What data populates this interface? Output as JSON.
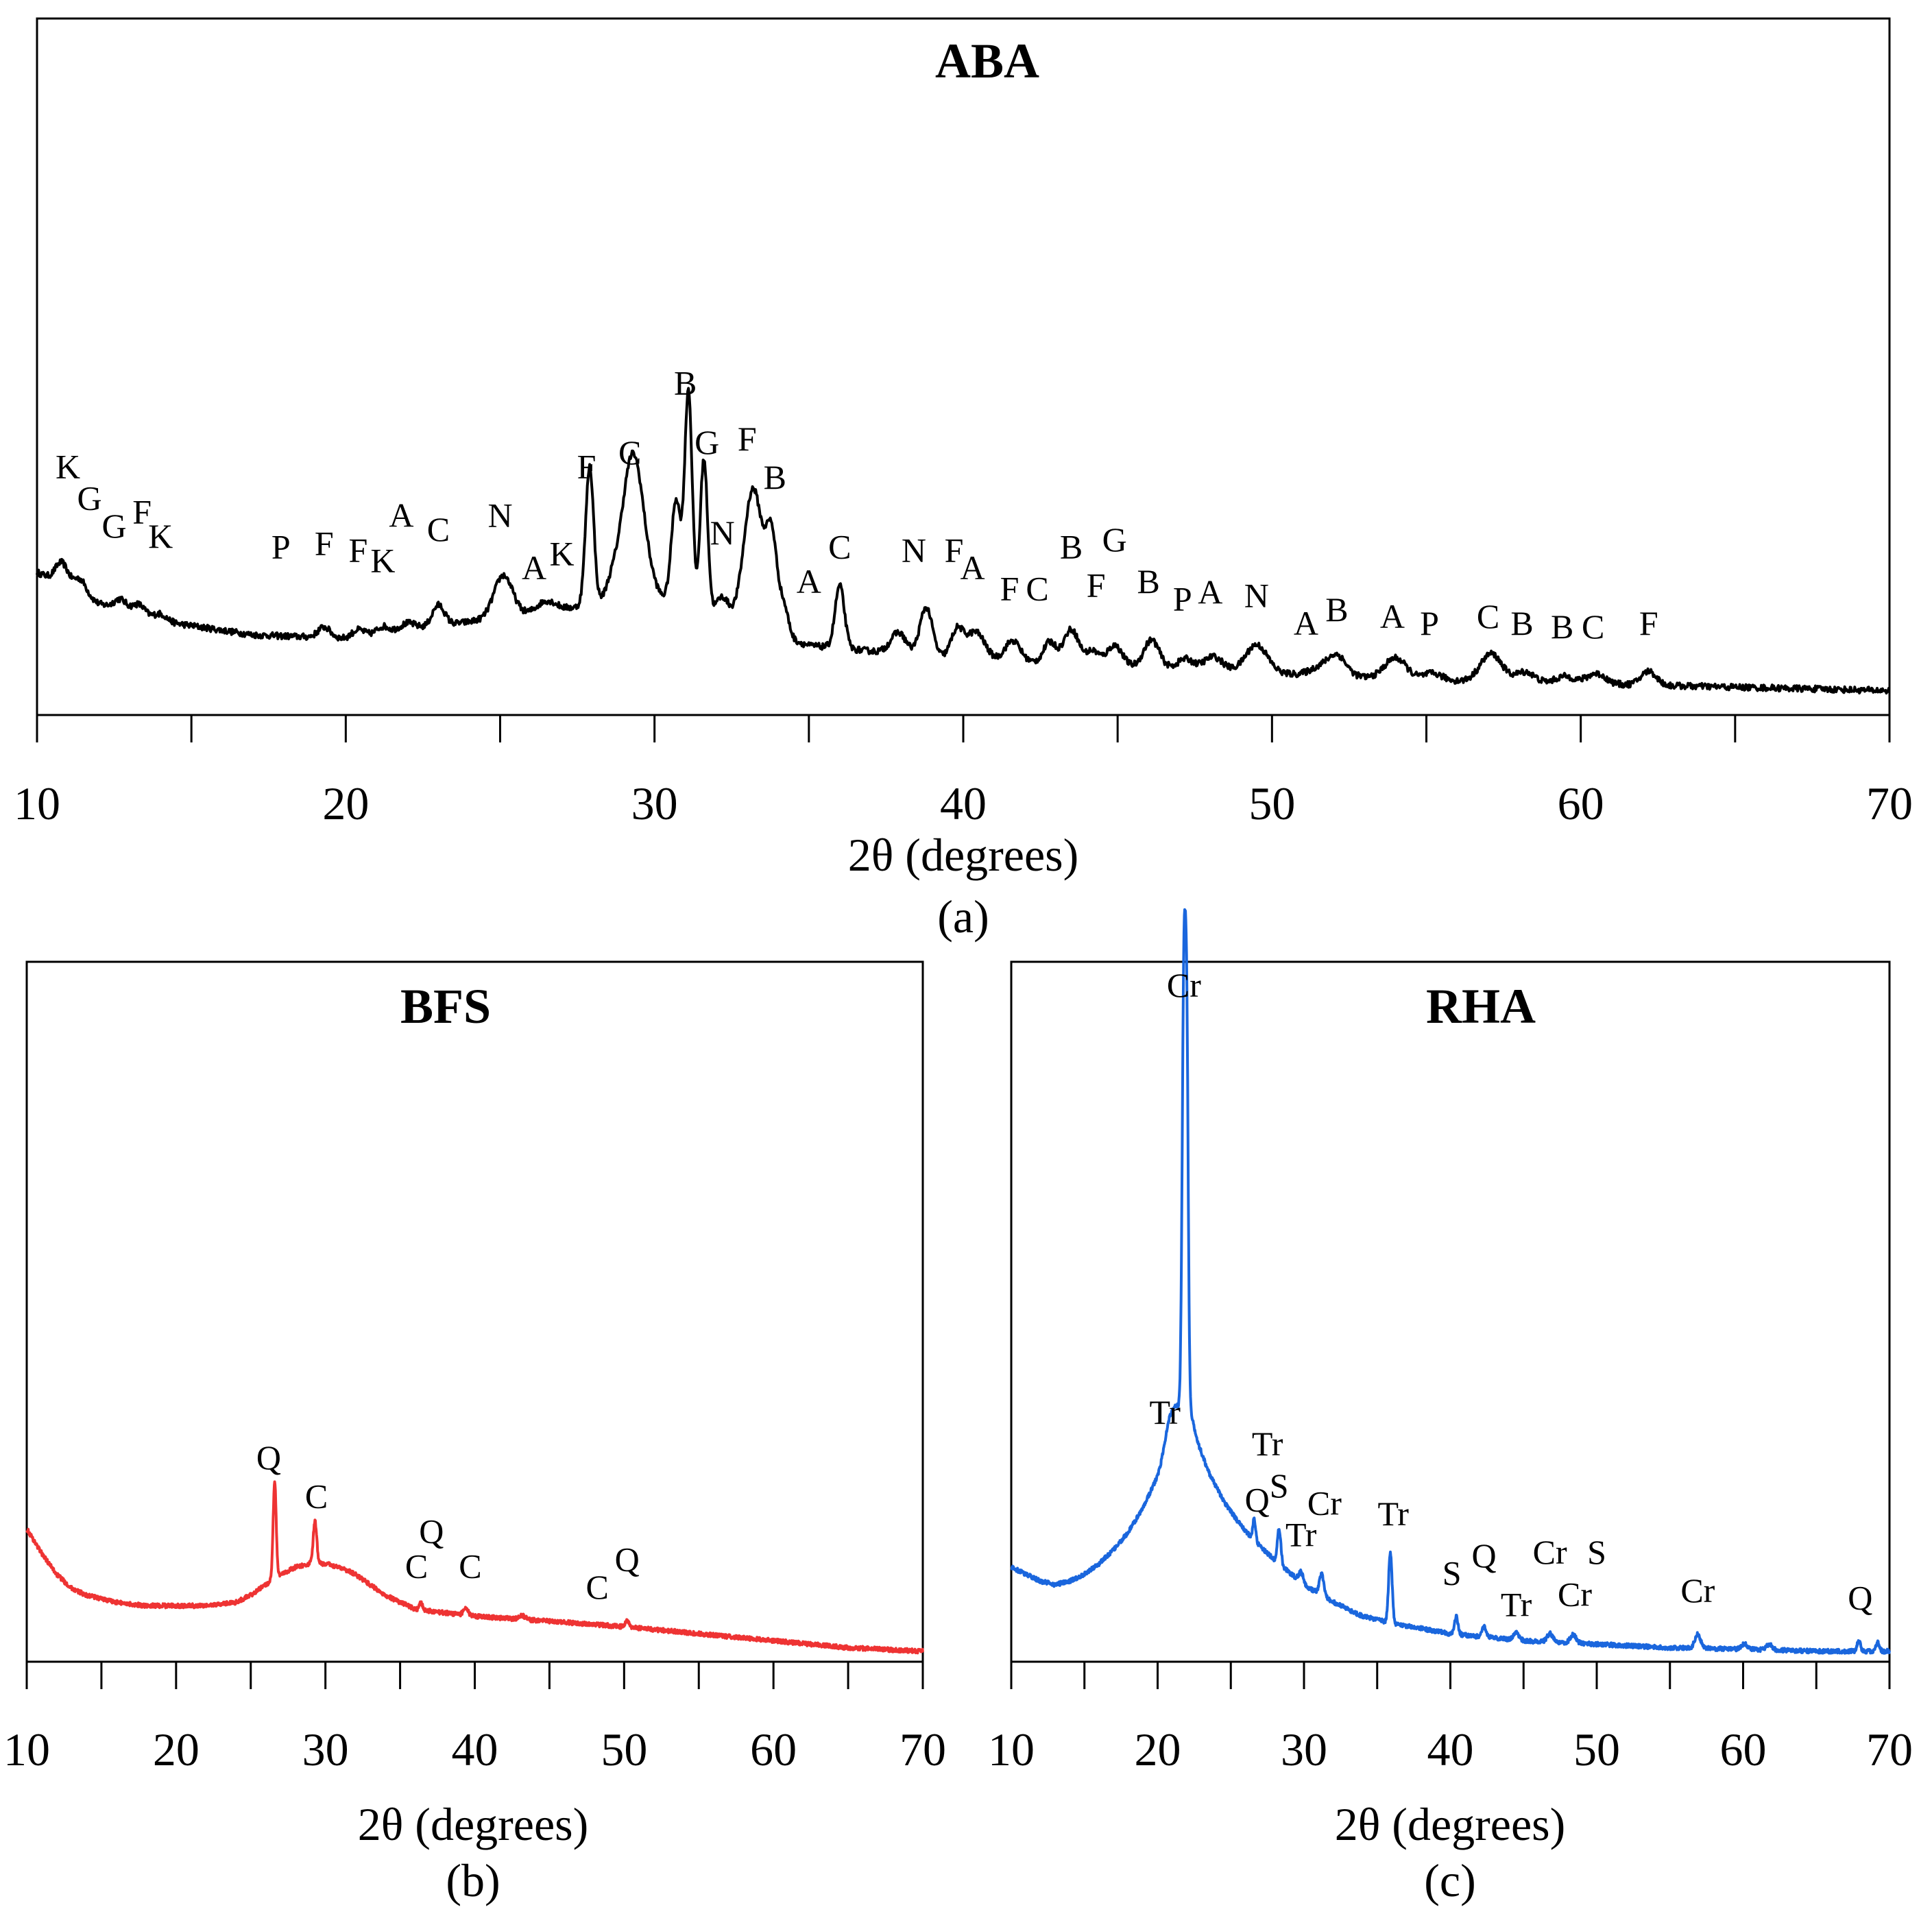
{
  "chart_data": [
    {
      "id": "a",
      "type": "line",
      "title": "ABA",
      "caption": "(a)",
      "xlabel": "2θ (degrees)",
      "ylabel": "",
      "xlim": [
        10,
        70
      ],
      "ylim": [
        0,
        100
      ],
      "xticks": [
        10,
        20,
        30,
        40,
        50,
        60,
        70
      ],
      "minor_xticks": [
        15,
        25,
        35,
        45,
        55,
        65
      ],
      "color": "#000000",
      "baseline": [
        [
          10,
          20.5
        ],
        [
          11,
          18.5
        ],
        [
          12,
          16
        ],
        [
          14,
          13.5
        ],
        [
          17,
          11.5
        ],
        [
          20,
          11
        ],
        [
          25,
          14
        ],
        [
          30,
          17
        ],
        [
          35,
          10
        ],
        [
          40,
          8
        ],
        [
          45,
          7
        ],
        [
          50,
          6
        ],
        [
          55,
          5
        ],
        [
          60,
          4.5
        ],
        [
          65,
          4
        ],
        [
          70,
          3.5
        ]
      ],
      "peaks": [
        [
          10.8,
          3,
          0.2
        ],
        [
          11.4,
          2,
          0.2
        ],
        [
          12.7,
          1.5,
          0.2
        ],
        [
          13.3,
          1.5,
          0.2
        ],
        [
          14,
          1,
          0.2
        ],
        [
          19.3,
          1.5,
          0.2
        ],
        [
          20.4,
          1,
          0.2
        ],
        [
          21.2,
          1,
          0.2
        ],
        [
          22,
          1,
          0.25
        ],
        [
          23,
          3,
          0.2
        ],
        [
          25.1,
          6,
          0.3
        ],
        [
          26.5,
          1.5,
          0.3
        ],
        [
          27.9,
          20,
          0.13
        ],
        [
          28.6,
          2,
          0.2
        ],
        [
          29.3,
          21,
          0.35
        ],
        [
          30.7,
          15,
          0.15
        ],
        [
          31.1,
          31,
          0.12
        ],
        [
          31.6,
          22,
          0.12
        ],
        [
          32.2,
          3,
          0.2
        ],
        [
          33.2,
          20,
          0.3
        ],
        [
          33.8,
          13,
          0.18
        ],
        [
          34.2,
          4,
          0.15
        ],
        [
          36,
          9,
          0.15
        ],
        [
          37.9,
          3,
          0.25
        ],
        [
          38.8,
          7,
          0.2
        ],
        [
          39.8,
          4,
          0.2
        ],
        [
          40.4,
          4,
          0.3
        ],
        [
          41.6,
          3,
          0.25
        ],
        [
          42.8,
          3,
          0.2
        ],
        [
          43.5,
          5,
          0.25
        ],
        [
          44.2,
          2,
          0.2
        ],
        [
          44.9,
          3,
          0.25
        ],
        [
          46.1,
          4,
          0.25
        ],
        [
          47.2,
          1.5,
          0.25
        ],
        [
          48.1,
          2,
          0.3
        ],
        [
          49.5,
          4,
          0.35
        ],
        [
          51.5,
          1,
          0.3
        ],
        [
          52.1,
          3,
          0.3
        ],
        [
          54,
          3,
          0.35
        ],
        [
          55.2,
          1,
          0.3
        ],
        [
          57.1,
          4,
          0.35
        ],
        [
          58.2,
          1.5,
          0.3
        ],
        [
          59.5,
          1,
          0.3
        ],
        [
          60.5,
          1.5,
          0.3
        ],
        [
          62.2,
          2,
          0.25
        ]
      ],
      "noise": 0.45,
      "annotations": [
        {
          "text": "K",
          "x": 11,
          "y": 34
        },
        {
          "text": "G",
          "x": 11.7,
          "y": 29.5
        },
        {
          "text": "G",
          "x": 12.5,
          "y": 25.5
        },
        {
          "text": "F",
          "x": 13.4,
          "y": 27.5
        },
        {
          "text": "K",
          "x": 14,
          "y": 24
        },
        {
          "text": "P",
          "x": 17.9,
          "y": 22.5
        },
        {
          "text": "F",
          "x": 19.3,
          "y": 23
        },
        {
          "text": "F",
          "x": 20.4,
          "y": 22
        },
        {
          "text": "K",
          "x": 21.2,
          "y": 20.5
        },
        {
          "text": "A",
          "x": 21.8,
          "y": 27
        },
        {
          "text": "C",
          "x": 23,
          "y": 25
        },
        {
          "text": "N",
          "x": 25,
          "y": 27
        },
        {
          "text": "A",
          "x": 26.1,
          "y": 19.5
        },
        {
          "text": "K",
          "x": 27,
          "y": 21.5
        },
        {
          "text": "F",
          "x": 27.8,
          "y": 34
        },
        {
          "text": "C",
          "x": 29.2,
          "y": 36
        },
        {
          "text": "B",
          "x": 31,
          "y": 46
        },
        {
          "text": "G",
          "x": 31.7,
          "y": 37.5
        },
        {
          "text": "N",
          "x": 32.2,
          "y": 24.5
        },
        {
          "text": "F",
          "x": 33,
          "y": 38
        },
        {
          "text": "B",
          "x": 33.9,
          "y": 32.5
        },
        {
          "text": "A",
          "x": 35,
          "y": 17.5
        },
        {
          "text": "C",
          "x": 36,
          "y": 22.5
        },
        {
          "text": "N",
          "x": 38.4,
          "y": 22
        },
        {
          "text": "F",
          "x": 39.7,
          "y": 22
        },
        {
          "text": "A",
          "x": 40.3,
          "y": 19.5
        },
        {
          "text": "F",
          "x": 41.5,
          "y": 16.5
        },
        {
          "text": "C",
          "x": 42.4,
          "y": 16.5
        },
        {
          "text": "B",
          "x": 43.5,
          "y": 22.5
        },
        {
          "text": "F",
          "x": 44.3,
          "y": 17
        },
        {
          "text": "G",
          "x": 44.9,
          "y": 23.5
        },
        {
          "text": "B",
          "x": 46,
          "y": 17.5
        },
        {
          "text": "P",
          "x": 47.1,
          "y": 15
        },
        {
          "text": "A",
          "x": 48,
          "y": 16
        },
        {
          "text": "N",
          "x": 49.5,
          "y": 15.5
        },
        {
          "text": "A",
          "x": 51.1,
          "y": 11.5
        },
        {
          "text": "B",
          "x": 52.1,
          "y": 13.5
        },
        {
          "text": "A",
          "x": 53.9,
          "y": 12.5
        },
        {
          "text": "P",
          "x": 55.1,
          "y": 11.5
        },
        {
          "text": "C",
          "x": 57,
          "y": 12.5
        },
        {
          "text": "B",
          "x": 58.1,
          "y": 11.5
        },
        {
          "text": "B",
          "x": 59.4,
          "y": 11
        },
        {
          "text": "C",
          "x": 60.4,
          "y": 11
        },
        {
          "text": "F",
          "x": 62.2,
          "y": 11.5
        }
      ]
    },
    {
      "id": "b",
      "type": "line",
      "title": "BFS",
      "caption": "(b)",
      "xlabel": "2θ (degrees)",
      "ylabel": "",
      "xlim": [
        10,
        70
      ],
      "ylim": [
        0,
        100
      ],
      "xticks": [
        10,
        20,
        30,
        40,
        50,
        60,
        70
      ],
      "minor_xticks": [
        15,
        25,
        35,
        45,
        55,
        65
      ],
      "color": "#ee3333",
      "baseline": [
        [
          10,
          19
        ],
        [
          11,
          15.5
        ],
        [
          12,
          12.5
        ],
        [
          13,
          10.5
        ],
        [
          14,
          9.5
        ],
        [
          16,
          8.5
        ],
        [
          18,
          8
        ],
        [
          20,
          8
        ],
        [
          22,
          8
        ],
        [
          24,
          8.5
        ],
        [
          25,
          9.5
        ],
        [
          26,
          11
        ],
        [
          27,
          12.5
        ],
        [
          28,
          13.5
        ],
        [
          29,
          14
        ],
        [
          30,
          14
        ],
        [
          31,
          13.5
        ],
        [
          32,
          12.5
        ],
        [
          33,
          11
        ],
        [
          34,
          9.5
        ],
        [
          35,
          8.5
        ],
        [
          36,
          7.5
        ],
        [
          38,
          7
        ],
        [
          40,
          6.5
        ],
        [
          45,
          5.8
        ],
        [
          50,
          5
        ],
        [
          55,
          4
        ],
        [
          60,
          3
        ],
        [
          65,
          2
        ],
        [
          70,
          1.5
        ]
      ],
      "peaks": [
        [
          26.6,
          14,
          0.1
        ],
        [
          29.3,
          6,
          0.12
        ],
        [
          36.4,
          1,
          0.1
        ],
        [
          39.4,
          1.2,
          0.15
        ],
        [
          43.2,
          0.5,
          0.2
        ],
        [
          50.2,
          1,
          0.12
        ]
      ],
      "noise": 0.3,
      "annotations": [
        {
          "text": "Q",
          "x": 26.2,
          "y": 27.5
        },
        {
          "text": "C",
          "x": 29.4,
          "y": 22
        },
        {
          "text": "Q",
          "x": 37.1,
          "y": 17
        },
        {
          "text": "C",
          "x": 36.1,
          "y": 12
        },
        {
          "text": "C",
          "x": 39.7,
          "y": 12
        },
        {
          "text": "C",
          "x": 48.2,
          "y": 9
        },
        {
          "text": "Q",
          "x": 50.2,
          "y": 13
        }
      ]
    },
    {
      "id": "c",
      "type": "line",
      "title": "RHA",
      "caption": "(c)",
      "xlabel": "2θ (degrees)",
      "ylabel": "",
      "xlim": [
        10,
        70
      ],
      "ylim": [
        0,
        100
      ],
      "xticks": [
        10,
        20,
        30,
        40,
        50,
        60,
        70
      ],
      "minor_xticks": [
        15,
        25,
        35,
        45,
        55,
        65
      ],
      "color": "#1a66dd",
      "baseline": [
        [
          10,
          13.5
        ],
        [
          11,
          12.5
        ],
        [
          12,
          11.5
        ],
        [
          13,
          11
        ],
        [
          14,
          11.5
        ],
        [
          15,
          12.5
        ],
        [
          16,
          14
        ],
        [
          17,
          16
        ],
        [
          18,
          18.5
        ],
        [
          19,
          22
        ],
        [
          20,
          26.5
        ],
        [
          20.7,
          31
        ],
        [
          21.3,
          36
        ],
        [
          22.2,
          36
        ],
        [
          22.8,
          31
        ],
        [
          23.5,
          27
        ],
        [
          24.5,
          23
        ],
        [
          25.5,
          20
        ],
        [
          26.5,
          17.5
        ],
        [
          28,
          14.5
        ],
        [
          30,
          11
        ],
        [
          32,
          8.5
        ],
        [
          34,
          6.5
        ],
        [
          36,
          5.5
        ],
        [
          40,
          4
        ],
        [
          45,
          3
        ],
        [
          50,
          2.5
        ],
        [
          55,
          2
        ],
        [
          60,
          1.8
        ],
        [
          65,
          1.5
        ],
        [
          70,
          1.5
        ]
      ],
      "peaks": [
        [
          20.8,
          3,
          0.3
        ],
        [
          21.8,
          62,
          0.12
        ],
        [
          22,
          45,
          0.1
        ],
        [
          26.6,
          3,
          0.1
        ],
        [
          28.3,
          5,
          0.12
        ],
        [
          29.8,
          1.5,
          0.15
        ],
        [
          31.2,
          3,
          0.15
        ],
        [
          35.9,
          10,
          0.12
        ],
        [
          40.4,
          2.5,
          0.12
        ],
        [
          42.3,
          1.5,
          0.15
        ],
        [
          44.5,
          1,
          0.2
        ],
        [
          46.8,
          1.2,
          0.2
        ],
        [
          48.4,
          1.2,
          0.2
        ],
        [
          56.9,
          2,
          0.2
        ],
        [
          60.1,
          0.8,
          0.2
        ],
        [
          61.8,
          0.8,
          0.2
        ],
        [
          67.9,
          1.5,
          0.12
        ],
        [
          69.2,
          1.2,
          0.12
        ]
      ],
      "noise": 0.3,
      "annotations": [
        {
          "text": "Cr",
          "x": 21.8,
          "y": 95
        },
        {
          "text": "Tr",
          "x": 20.5,
          "y": 34
        },
        {
          "text": "Tr",
          "x": 27.5,
          "y": 29.5
        },
        {
          "text": "Q",
          "x": 26.8,
          "y": 21.5
        },
        {
          "text": "S",
          "x": 28.3,
          "y": 23.5
        },
        {
          "text": "Cr",
          "x": 31.4,
          "y": 21
        },
        {
          "text": "Tr",
          "x": 29.8,
          "y": 16.5
        },
        {
          "text": "Tr",
          "x": 36.1,
          "y": 19.5
        },
        {
          "text": "S",
          "x": 40.1,
          "y": 11
        },
        {
          "text": "Q",
          "x": 42.3,
          "y": 13.5
        },
        {
          "text": "Cr",
          "x": 46.8,
          "y": 14
        },
        {
          "text": "S",
          "x": 50,
          "y": 14
        },
        {
          "text": "Tr",
          "x": 44.5,
          "y": 6.5
        },
        {
          "text": "Cr",
          "x": 48.5,
          "y": 8
        },
        {
          "text": "Cr",
          "x": 56.9,
          "y": 8.5
        },
        {
          "text": "Q",
          "x": 68,
          "y": 7.5
        }
      ]
    }
  ]
}
